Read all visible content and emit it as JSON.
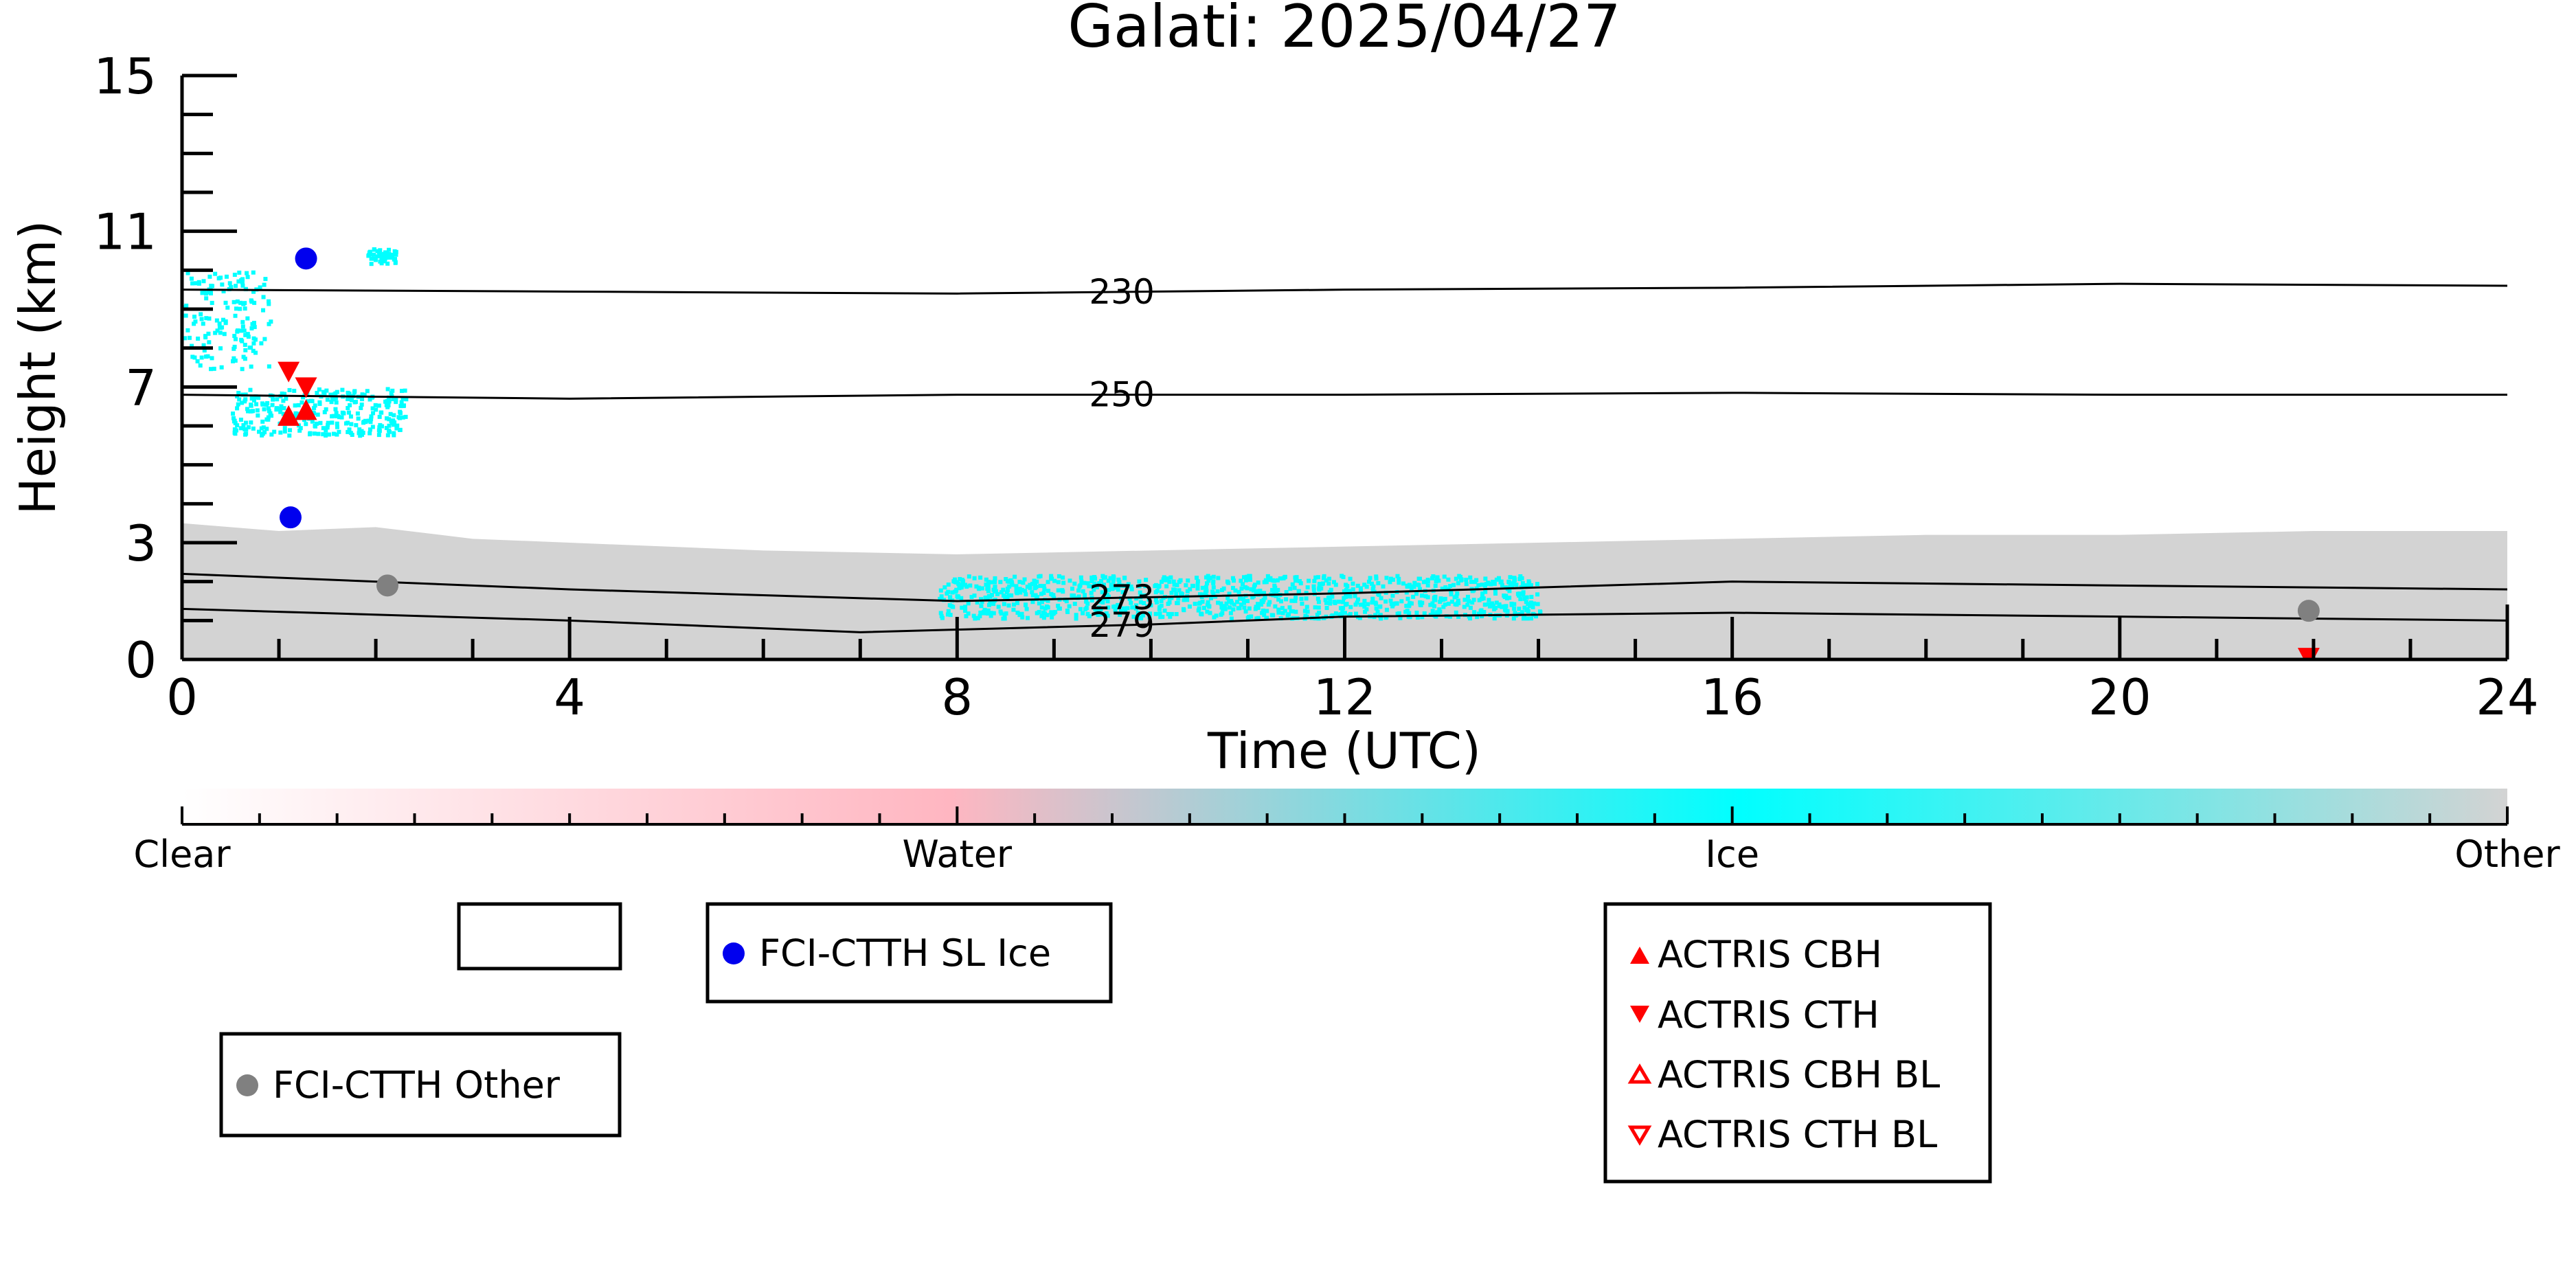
{
  "chart_data": {
    "type": "scatter",
    "title": "Galati: 2025/04/27",
    "xlabel": "Time (UTC)",
    "ylabel": "Height (km)",
    "xlim": [
      0,
      24
    ],
    "ylim": [
      0,
      15
    ],
    "x_ticks": [
      0,
      4,
      8,
      12,
      16,
      20,
      24
    ],
    "x_tick_labels": [
      "0",
      "4",
      "8",
      "12",
      "16",
      "20",
      "24"
    ],
    "y_ticks": [
      0,
      3,
      7,
      11,
      15
    ],
    "y_tick_labels": [
      "0",
      "3",
      "7",
      "11",
      "15"
    ],
    "background_cloud_mask": {
      "description_colors": {
        "other": "#d3d3d3",
        "ice": "#00ffff"
      },
      "other_layer_top_km": [
        [
          0,
          3.5
        ],
        [
          1,
          3.3
        ],
        [
          2,
          3.4
        ],
        [
          3,
          3.1
        ],
        [
          4,
          3.0
        ],
        [
          6,
          2.8
        ],
        [
          8,
          2.7
        ],
        [
          10,
          2.8
        ],
        [
          12,
          2.9
        ],
        [
          14,
          3.0
        ],
        [
          16,
          3.1
        ],
        [
          18,
          3.2
        ],
        [
          20,
          3.2
        ],
        [
          22,
          3.3
        ],
        [
          24,
          3.3
        ]
      ],
      "ice_clusters": [
        {
          "x": [
            0.0,
            0.9
          ],
          "y": [
            7.5,
            10.0
          ]
        },
        {
          "x": [
            0.5,
            2.3
          ],
          "y": [
            5.8,
            7.0
          ]
        },
        {
          "x": [
            1.9,
            2.2
          ],
          "y": [
            10.2,
            10.6
          ]
        },
        {
          "x": [
            7.8,
            14.0
          ],
          "y": [
            1.1,
            2.2
          ]
        }
      ]
    },
    "isotherms": [
      {
        "label": "230",
        "label_x": 9.7,
        "points": [
          [
            0,
            9.5
          ],
          [
            4,
            9.45
          ],
          [
            8,
            9.4
          ],
          [
            12,
            9.5
          ],
          [
            16,
            9.55
          ],
          [
            20,
            9.65
          ],
          [
            24,
            9.6
          ]
        ]
      },
      {
        "label": "250",
        "label_x": 9.7,
        "points": [
          [
            0,
            6.8
          ],
          [
            4,
            6.7
          ],
          [
            8,
            6.8
          ],
          [
            12,
            6.8
          ],
          [
            16,
            6.85
          ],
          [
            20,
            6.8
          ],
          [
            24,
            6.8
          ]
        ]
      },
      {
        "label": "273",
        "label_x": 9.7,
        "points": [
          [
            0,
            2.2
          ],
          [
            4,
            1.8
          ],
          [
            8,
            1.5
          ],
          [
            12,
            1.7
          ],
          [
            16,
            2.0
          ],
          [
            20,
            1.9
          ],
          [
            24,
            1.8
          ]
        ]
      },
      {
        "label": "279",
        "label_x": 9.7,
        "points": [
          [
            0,
            1.3
          ],
          [
            4,
            1.0
          ],
          [
            7,
            0.7
          ],
          [
            10,
            0.9
          ],
          [
            12,
            1.1
          ],
          [
            16,
            1.2
          ],
          [
            20,
            1.1
          ],
          [
            24,
            1.0
          ]
        ]
      }
    ],
    "series": [
      {
        "name": "FCI-CTTH SL Ice",
        "marker": "circle",
        "color": "#0000ee",
        "points": [
          [
            1.28,
            10.3
          ],
          [
            1.12,
            3.65
          ]
        ]
      },
      {
        "name": "FCI-CTTH Other",
        "marker": "circle",
        "color": "#808080",
        "points": [
          [
            2.12,
            1.9
          ],
          [
            21.95,
            1.25
          ]
        ]
      },
      {
        "name": "ACTRIS CBH",
        "marker": "triangle-up",
        "color": "#ff0000",
        "points": [
          [
            1.1,
            6.25
          ],
          [
            1.28,
            6.4
          ]
        ]
      },
      {
        "name": "ACTRIS CTH",
        "marker": "triangle-down",
        "color": "#ff0000",
        "points": [
          [
            1.1,
            7.4
          ],
          [
            1.28,
            7.0
          ],
          [
            21.95,
            0.05
          ]
        ]
      },
      {
        "name": "ACTRIS CBH BL",
        "marker": "triangle-up-open",
        "color": "#ff0000",
        "points": []
      },
      {
        "name": "ACTRIS CTH BL",
        "marker": "triangle-down-open",
        "color": "#ff0000",
        "points": []
      }
    ],
    "colorbar": {
      "labels": [
        "Clear",
        "Water",
        "Ice",
        "Other"
      ],
      "colors": [
        "#ffffff",
        "#ffb6c1",
        "#00ffff",
        "#d3d3d3"
      ]
    },
    "legends": [
      {
        "entries": []
      },
      {
        "entries": [
          "FCI-CTTH SL Ice"
        ]
      },
      {
        "entries": [
          "FCI-CTTH Other"
        ]
      },
      {
        "entries": [
          "ACTRIS CBH",
          "ACTRIS CTH",
          "ACTRIS CBH BL",
          "ACTRIS CTH BL"
        ]
      }
    ]
  }
}
